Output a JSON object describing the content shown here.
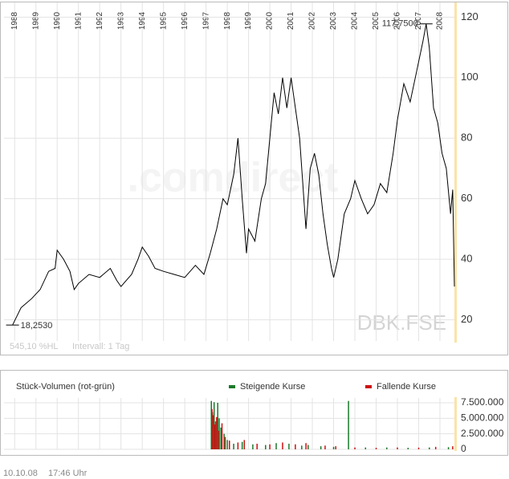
{
  "chart_data": [
    {
      "type": "line",
      "color": "#000000",
      "x": [
        1987.9,
        1988.3,
        1988.8,
        1989.2,
        1989.6,
        1989.9,
        1990.0,
        1990.3,
        1990.6,
        1990.8,
        1991.0,
        1991.5,
        1992.0,
        1992.5,
        1992.8,
        1993.0,
        1993.5,
        1993.8,
        1994.0,
        1994.3,
        1994.6,
        1995.0,
        1995.5,
        1996.0,
        1996.5,
        1996.9,
        1997.2,
        1997.5,
        1997.8,
        1998.0,
        1998.3,
        1998.5,
        1998.7,
        1998.9,
        1999.0,
        1999.3,
        1999.6,
        1999.8,
        2000.0,
        2000.2,
        2000.4,
        2000.6,
        2000.8,
        2001.0,
        2001.2,
        2001.4,
        2001.7,
        2001.9,
        2002.1,
        2002.3,
        2002.5,
        2002.7,
        2002.9,
        2003.0,
        2003.2,
        2003.5,
        2003.8,
        2004.0,
        2004.3,
        2004.6,
        2004.9,
        2005.2,
        2005.5,
        2005.8,
        2006.0,
        2006.3,
        2006.6,
        2006.9,
        2007.2,
        2007.35,
        2007.5,
        2007.7,
        2007.9,
        2008.1,
        2008.3,
        2008.5,
        2008.6,
        2008.68
      ],
      "values": [
        18.253,
        24,
        27,
        30,
        36,
        37,
        43,
        40,
        36,
        30,
        32,
        35,
        34,
        37,
        33,
        31,
        35,
        40,
        44,
        41,
        37,
        36,
        35,
        34,
        38,
        35,
        42,
        50,
        60,
        58,
        68,
        80,
        60,
        42,
        50,
        46,
        60,
        65,
        80,
        95,
        88,
        100,
        90,
        100,
        90,
        80,
        50,
        70,
        75,
        68,
        55,
        45,
        37,
        34,
        40,
        55,
        60,
        66,
        60,
        55,
        58,
        65,
        62,
        75,
        86,
        98,
        92,
        102,
        112,
        117.75,
        110,
        90,
        85,
        75,
        70,
        55,
        63,
        31
      ],
      "xlim": [
        1987.5,
        2008.68
      ],
      "xticks": [
        1988,
        1989,
        1990,
        1991,
        1992,
        1993,
        1994,
        1995,
        1996,
        1997,
        1998,
        1999,
        2000,
        2001,
        2002,
        2003,
        2004,
        2005,
        2006,
        2007,
        2008
      ],
      "ylim": [
        13,
        123
      ],
      "yticks": [
        20,
        40,
        60,
        80,
        100,
        120
      ],
      "grid": true,
      "annotations": [
        {
          "text": "117,7500",
          "x": 2007.35,
          "y": 117.75
        },
        {
          "text": "18,2530",
          "x": 1987.9,
          "y": 18.253
        }
      ],
      "watermark": ".comdirect",
      "symbol": "DBK.FSE",
      "info": [
        "545,10 %HL",
        "Intervall: 1 Tag"
      ]
    },
    {
      "type": "bar",
      "title": "Stück-Volumen (rot-grün)",
      "series": [
        {
          "name": "Steigende Kurse",
          "color": "#1a7a2a",
          "x": [
            1997.25,
            1997.3,
            1997.38,
            1997.45,
            1997.55,
            1997.62,
            1997.7,
            1997.85,
            1998.0,
            1998.3,
            1998.7,
            1999.2,
            1999.8,
            2000.3,
            2000.9,
            2001.5,
            2001.8,
            2002.4,
            2003.0,
            2003.7,
            2004.5,
            2005.5,
            2006.5,
            2007.5,
            2008.4
          ],
          "values": [
            7800000,
            6000000,
            7600000,
            4500000,
            7500000,
            5000000,
            3500000,
            2500000,
            1500000,
            900000,
            1200000,
            800000,
            700000,
            1000000,
            900000,
            600000,
            700000,
            500000,
            400000,
            7800000,
            300000,
            300000,
            250000,
            300000,
            350000
          ]
        },
        {
          "name": "Fallende Kurse",
          "color": "#cc1111",
          "x": [
            1997.28,
            1997.35,
            1997.42,
            1997.5,
            1997.6,
            1997.75,
            1997.9,
            1998.1,
            1998.5,
            1998.8,
            1999.4,
            2000.0,
            2000.6,
            2001.2,
            2001.7,
            2002.6,
            2003.1,
            2004.0,
            2005.0,
            2006.0,
            2007.0,
            2007.8,
            2008.6
          ],
          "values": [
            6500000,
            5500000,
            4000000,
            5200000,
            3000000,
            4200000,
            2000000,
            1400000,
            1100000,
            1500000,
            900000,
            800000,
            1100000,
            800000,
            1000000,
            600000,
            500000,
            300000,
            250000,
            300000,
            280000,
            400000,
            500000
          ]
        }
      ],
      "xlim": [
        1987.5,
        2008.68
      ],
      "xticks": [
        1988,
        1989,
        1990,
        1991,
        1992,
        1993,
        1994,
        1995,
        1996,
        1997,
        1998,
        1999,
        2000,
        2001,
        2002,
        2003,
        2004,
        2005,
        2006,
        2007,
        2008
      ],
      "ylim": [
        0,
        8280000
      ],
      "yticks": [
        0,
        {
          "value": 2500000,
          "label": "2.500.000"
        },
        {
          "value": 5000000,
          "label": "5.000.000"
        },
        {
          "value": 7500000,
          "label": "7.500.000"
        }
      ],
      "grid": true
    }
  ],
  "footer": {
    "date": "10.10.08",
    "time": "17:46 Uhr"
  }
}
